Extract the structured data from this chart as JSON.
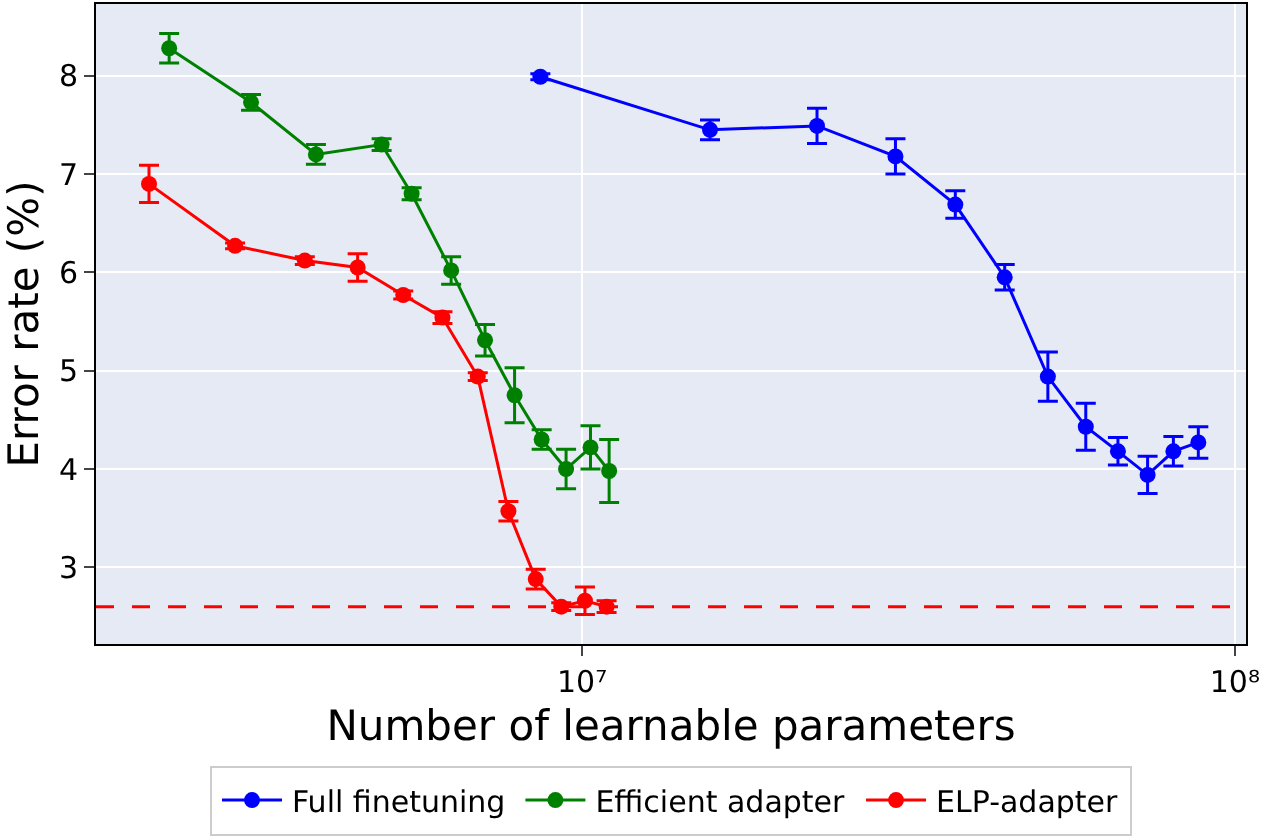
{
  "chart_data": {
    "type": "line",
    "xlabel": "Number of learnable parameters",
    "ylabel": "Error rate (%)",
    "log": "x",
    "xlim": [
      1800000.0,
      104000000.0
    ],
    "ylim": [
      2.22,
      8.73
    ],
    "xticks": [
      {
        "value": 10000000.0,
        "label": "10⁷"
      },
      {
        "value": 100000000.0,
        "label": "10⁸"
      }
    ],
    "yticks": [
      3,
      4,
      5,
      6,
      7,
      8
    ],
    "grid": true,
    "legend": "bottom",
    "marker": "circle",
    "line_style": "solid",
    "series": [
      {
        "name": "Full finetuning",
        "color": "#0000ff",
        "x": [
          8630000.0,
          15700000.0,
          22900000.0,
          30200000.0,
          37300000.0,
          44400000.0,
          51700000.0,
          59100000.0,
          66200000.0,
          73500000.0,
          80500000.0,
          87900000.0
        ],
        "values": [
          7.99,
          7.45,
          7.49,
          7.18,
          6.69,
          5.95,
          4.94,
          4.43,
          4.18,
          3.94,
          4.18,
          4.27
        ],
        "errors": [
          0.03,
          0.1,
          0.18,
          0.18,
          0.14,
          0.13,
          0.25,
          0.24,
          0.14,
          0.19,
          0.15,
          0.16
        ]
      },
      {
        "name": "Efficient adapter",
        "color": "#008000",
        "x": [
          2330000.0,
          3110000.0,
          3910000.0,
          4930000.0,
          5480000.0,
          6300000.0,
          7100000.0,
          7880000.0,
          8670000.0,
          9450000.0,
          10300000.0,
          11000000.0
        ],
        "values": [
          8.28,
          7.73,
          7.2,
          7.3,
          6.8,
          6.02,
          5.31,
          4.75,
          4.3,
          4.0,
          4.22,
          3.98
        ],
        "errors": [
          0.15,
          0.08,
          0.1,
          0.06,
          0.06,
          0.14,
          0.16,
          0.28,
          0.1,
          0.2,
          0.22,
          0.32
        ]
      },
      {
        "name": "ELP-adapter",
        "color": "#ff0000",
        "x": [
          2170000.0,
          2940000.0,
          3760000.0,
          4530000.0,
          5320000.0,
          6110000.0,
          6920000.0,
          7710000.0,
          8490000.0,
          9290000.0,
          10100000.0,
          10900000.0
        ],
        "values": [
          6.9,
          6.27,
          6.12,
          6.05,
          5.77,
          5.54,
          4.94,
          3.57,
          2.88,
          2.6,
          2.66,
          2.6
        ],
        "errors": [
          0.19,
          0.03,
          0.04,
          0.14,
          0.04,
          0.06,
          0.04,
          0.1,
          0.1,
          0.04,
          0.14,
          0.06
        ]
      }
    ],
    "ref_lines": [
      {
        "axis": "y",
        "value": 2.6,
        "color": "#ff0000",
        "line_style": "dashed"
      }
    ]
  }
}
